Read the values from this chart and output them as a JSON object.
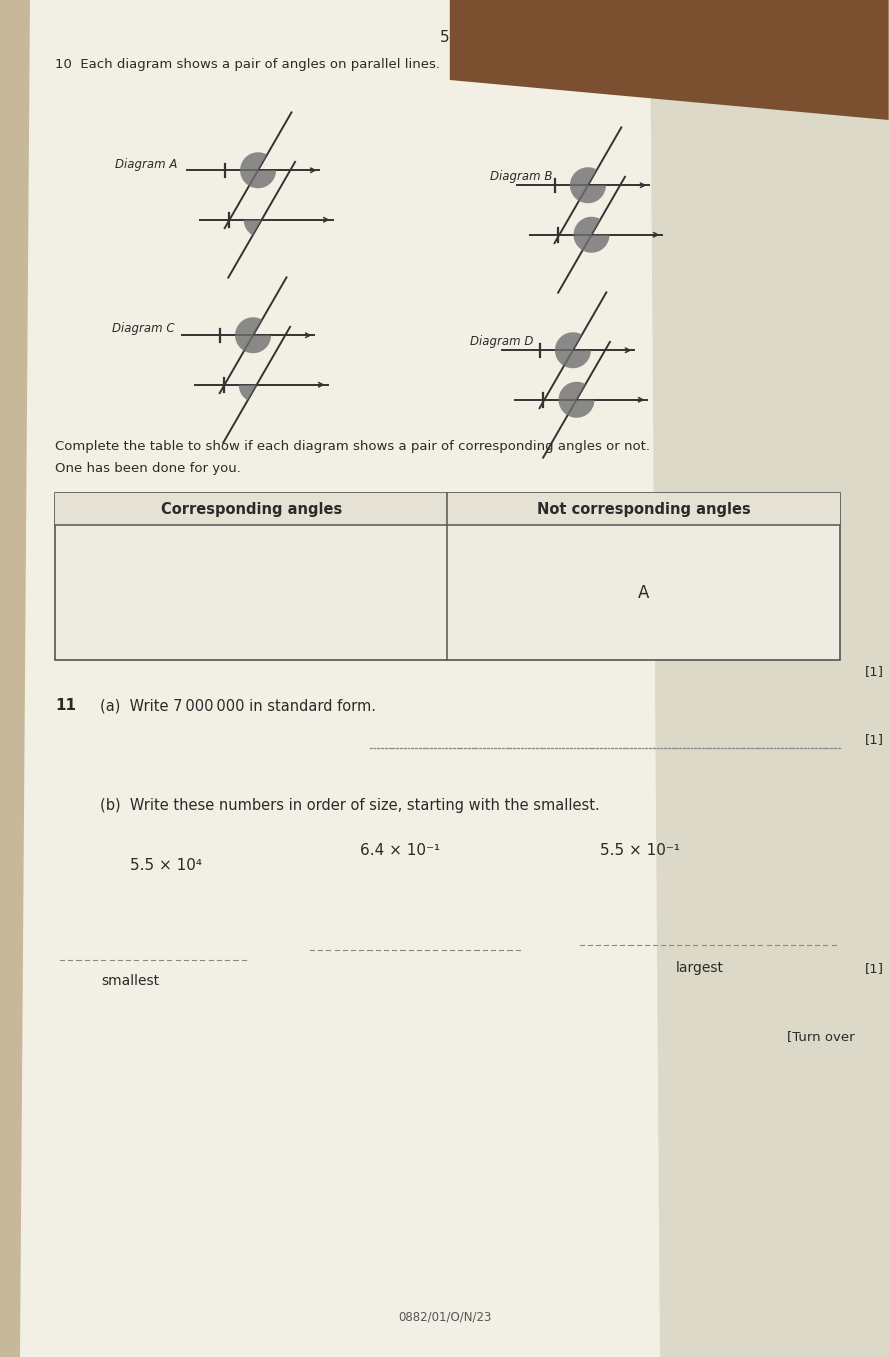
{
  "bg_top_color": "#8B6040",
  "bg_color": "#c8b89a",
  "page_color": "#f2efe4",
  "page_color2": "#e8e4d5",
  "title_top": "10  Each diagram shows a pair of angles on parallel lines.",
  "page_number": "5",
  "diagram_A_label": "Diagram A",
  "diagram_B_label": "Diagram B",
  "diagram_C_label": "Diagram C",
  "diagram_D_label": "Diagram D",
  "table_instruction_1": "Complete the table to show if each diagram shows a pair of corresponding angles or not.",
  "table_instruction_2": "One has been done for you.",
  "col1_header": "Corresponding angles",
  "col2_header": "Not corresponding angles",
  "table_cell_A": "A",
  "q11_label": "11",
  "q11a_text": "(a)  Write 7 000 000 in standard form.",
  "q11a_mark": "[1]",
  "q11b_text": "(b)  Write these numbers in order of size, starting with the smallest.",
  "number1": "5.5 × 10⁴",
  "number2": "6.4 × 10⁻¹",
  "number3": "5.5 × 10⁻¹",
  "label_smallest": "smallest",
  "label_largest": "largest",
  "q11b_mark": "[1]",
  "turn_over": "[Turn over",
  "footer": "0882/01/O/N/23",
  "angle_color": "#707070",
  "line_color": "#333333",
  "tick_color": "#333333",
  "text_color": "#2a2a2a"
}
